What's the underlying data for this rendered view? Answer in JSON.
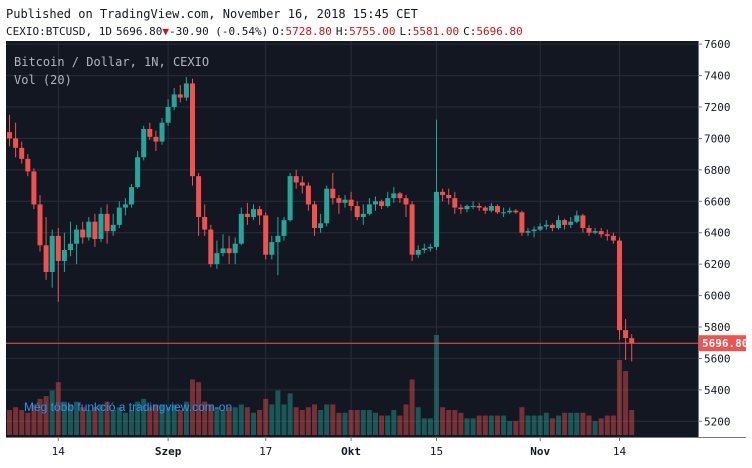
{
  "header": {
    "published": "Published on TradingView.com, November 16, 2018 15:45 CET",
    "symbol": "CEXIO:BTCUSD, 1D",
    "last": "5696.80",
    "change": "-30.90 (-0.54%)",
    "o_label": "O:",
    "o_value": "5728.80",
    "h_label": "H:",
    "h_value": "5755.00",
    "l_label": "L:",
    "l_value": "5581.00",
    "c_label": "C:",
    "c_value": "5696.80"
  },
  "overlay": {
    "title": "Bitcoin / Dollar, 1N, CEXIO",
    "vol": "Vol (20)",
    "watermark": "Még több funkció a tradingview.com-on"
  },
  "colors": {
    "background": "#131722",
    "up": "#26a69a",
    "down": "#ef5350",
    "grid": "#2a2e39",
    "axis_bg": "#ffffff",
    "last_price": "#ef5350",
    "watermark": "#2196f3"
  },
  "chart_data": {
    "type": "candlestick",
    "x_tick_labels": [
      "14",
      "Szep",
      "17",
      "Okt",
      "15",
      "Nov",
      "14"
    ],
    "y_ticks": [
      5200,
      5400,
      5600,
      5800,
      6000,
      6200,
      6400,
      6600,
      6800,
      7000,
      7200,
      7400,
      7600
    ],
    "ylim": [
      5100,
      7620
    ],
    "last_price": 5696.8,
    "last_price_label": "5696.80",
    "candles": [
      {
        "date": "2018-08-06",
        "o": 7040,
        "h": 7150,
        "l": 6950,
        "c": 7000,
        "v": 0.45
      },
      {
        "date": "2018-08-07",
        "o": 7000,
        "h": 7100,
        "l": 6880,
        "c": 6940,
        "v": 0.5
      },
      {
        "date": "2018-08-08",
        "o": 6940,
        "h": 6980,
        "l": 6840,
        "c": 6870,
        "v": 0.45
      },
      {
        "date": "2018-08-09",
        "o": 6870,
        "h": 6900,
        "l": 6760,
        "c": 6790,
        "v": 0.4
      },
      {
        "date": "2018-08-10",
        "o": 6790,
        "h": 6810,
        "l": 6550,
        "c": 6580,
        "v": 0.55
      },
      {
        "date": "2018-08-11",
        "o": 6580,
        "h": 6640,
        "l": 6280,
        "c": 6320,
        "v": 0.65
      },
      {
        "date": "2018-08-12",
        "o": 6320,
        "h": 6500,
        "l": 6100,
        "c": 6150,
        "v": 0.7
      },
      {
        "date": "2018-08-13",
        "o": 6150,
        "h": 6420,
        "l": 6050,
        "c": 6380,
        "v": 0.8
      },
      {
        "date": "2018-08-14",
        "o": 6380,
        "h": 6430,
        "l": 5960,
        "c": 6220,
        "v": 0.95
      },
      {
        "date": "2018-08-15",
        "o": 6220,
        "h": 6400,
        "l": 6150,
        "c": 6290,
        "v": 0.6
      },
      {
        "date": "2018-08-16",
        "o": 6290,
        "h": 6470,
        "l": 6250,
        "c": 6330,
        "v": 0.55
      },
      {
        "date": "2018-08-17",
        "o": 6330,
        "h": 6450,
        "l": 6200,
        "c": 6420,
        "v": 0.6
      },
      {
        "date": "2018-08-18",
        "o": 6420,
        "h": 6470,
        "l": 6330,
        "c": 6370,
        "v": 0.5
      },
      {
        "date": "2018-08-19",
        "o": 6370,
        "h": 6500,
        "l": 6350,
        "c": 6470,
        "v": 0.45
      },
      {
        "date": "2018-08-20",
        "o": 6470,
        "h": 6520,
        "l": 6310,
        "c": 6360,
        "v": 0.5
      },
      {
        "date": "2018-08-21",
        "o": 6360,
        "h": 6560,
        "l": 6340,
        "c": 6520,
        "v": 0.55
      },
      {
        "date": "2018-08-22",
        "o": 6520,
        "h": 6580,
        "l": 6330,
        "c": 6410,
        "v": 0.6
      },
      {
        "date": "2018-08-23",
        "o": 6410,
        "h": 6520,
        "l": 6380,
        "c": 6450,
        "v": 0.45
      },
      {
        "date": "2018-08-24",
        "o": 6450,
        "h": 6600,
        "l": 6430,
        "c": 6560,
        "v": 0.5
      },
      {
        "date": "2018-08-25",
        "o": 6560,
        "h": 6620,
        "l": 6510,
        "c": 6580,
        "v": 0.4
      },
      {
        "date": "2018-08-26",
        "o": 6580,
        "h": 6710,
        "l": 6560,
        "c": 6690,
        "v": 0.45
      },
      {
        "date": "2018-08-27",
        "o": 6690,
        "h": 6920,
        "l": 6680,
        "c": 6880,
        "v": 0.6
      },
      {
        "date": "2018-08-28",
        "o": 6880,
        "h": 7080,
        "l": 6860,
        "c": 7060,
        "v": 0.65
      },
      {
        "date": "2018-08-29",
        "o": 7060,
        "h": 7100,
        "l": 6990,
        "c": 7010,
        "v": 0.5
      },
      {
        "date": "2018-08-30",
        "o": 7010,
        "h": 7050,
        "l": 6920,
        "c": 6980,
        "v": 0.55
      },
      {
        "date": "2018-08-31",
        "o": 6980,
        "h": 7130,
        "l": 6960,
        "c": 7100,
        "v": 0.55
      },
      {
        "date": "2018-09-01",
        "o": 7100,
        "h": 7250,
        "l": 7080,
        "c": 7200,
        "v": 0.5
      },
      {
        "date": "2018-09-02",
        "o": 7200,
        "h": 7320,
        "l": 7180,
        "c": 7280,
        "v": 0.55
      },
      {
        "date": "2018-09-03",
        "o": 7280,
        "h": 7340,
        "l": 7230,
        "c": 7260,
        "v": 0.45
      },
      {
        "date": "2018-09-04",
        "o": 7260,
        "h": 7390,
        "l": 7240,
        "c": 7350,
        "v": 0.6
      },
      {
        "date": "2018-09-05",
        "o": 7350,
        "h": 7380,
        "l": 6700,
        "c": 6760,
        "v": 1.0
      },
      {
        "date": "2018-09-06",
        "o": 6760,
        "h": 6780,
        "l": 6380,
        "c": 6500,
        "v": 0.95
      },
      {
        "date": "2018-09-07",
        "o": 6500,
        "h": 6580,
        "l": 6380,
        "c": 6420,
        "v": 0.6
      },
      {
        "date": "2018-09-08",
        "o": 6420,
        "h": 6450,
        "l": 6180,
        "c": 6200,
        "v": 0.55
      },
      {
        "date": "2018-09-09",
        "o": 6200,
        "h": 6350,
        "l": 6170,
        "c": 6270,
        "v": 0.5
      },
      {
        "date": "2018-09-10",
        "o": 6270,
        "h": 6390,
        "l": 6250,
        "c": 6300,
        "v": 0.45
      },
      {
        "date": "2018-09-11",
        "o": 6300,
        "h": 6380,
        "l": 6200,
        "c": 6270,
        "v": 0.5
      },
      {
        "date": "2018-09-12",
        "o": 6270,
        "h": 6370,
        "l": 6200,
        "c": 6330,
        "v": 0.5
      },
      {
        "date": "2018-09-13",
        "o": 6330,
        "h": 6560,
        "l": 6320,
        "c": 6520,
        "v": 0.55
      },
      {
        "date": "2018-09-14",
        "o": 6520,
        "h": 6590,
        "l": 6450,
        "c": 6500,
        "v": 0.5
      },
      {
        "date": "2018-09-15",
        "o": 6500,
        "h": 6580,
        "l": 6480,
        "c": 6550,
        "v": 0.4
      },
      {
        "date": "2018-09-16",
        "o": 6550,
        "h": 6570,
        "l": 6450,
        "c": 6510,
        "v": 0.45
      },
      {
        "date": "2018-09-17",
        "o": 6510,
        "h": 6530,
        "l": 6230,
        "c": 6260,
        "v": 0.65
      },
      {
        "date": "2018-09-18",
        "o": 6260,
        "h": 6380,
        "l": 6230,
        "c": 6340,
        "v": 0.55
      },
      {
        "date": "2018-09-19",
        "o": 6340,
        "h": 6500,
        "l": 6130,
        "c": 6380,
        "v": 0.8
      },
      {
        "date": "2018-09-20",
        "o": 6380,
        "h": 6500,
        "l": 6350,
        "c": 6480,
        "v": 0.55
      },
      {
        "date": "2018-09-21",
        "o": 6480,
        "h": 6780,
        "l": 6470,
        "c": 6760,
        "v": 0.75
      },
      {
        "date": "2018-09-22",
        "o": 6760,
        "h": 6800,
        "l": 6680,
        "c": 6720,
        "v": 0.5
      },
      {
        "date": "2018-09-23",
        "o": 6720,
        "h": 6760,
        "l": 6650,
        "c": 6700,
        "v": 0.45
      },
      {
        "date": "2018-09-24",
        "o": 6700,
        "h": 6720,
        "l": 6540,
        "c": 6580,
        "v": 0.5
      },
      {
        "date": "2018-09-25",
        "o": 6580,
        "h": 6600,
        "l": 6380,
        "c": 6430,
        "v": 0.55
      },
      {
        "date": "2018-09-26",
        "o": 6430,
        "h": 6520,
        "l": 6400,
        "c": 6460,
        "v": 0.45
      },
      {
        "date": "2018-09-27",
        "o": 6460,
        "h": 6700,
        "l": 6440,
        "c": 6680,
        "v": 0.55
      },
      {
        "date": "2018-09-28",
        "o": 6680,
        "h": 6780,
        "l": 6580,
        "c": 6620,
        "v": 0.55
      },
      {
        "date": "2018-09-29",
        "o": 6620,
        "h": 6640,
        "l": 6520,
        "c": 6590,
        "v": 0.4
      },
      {
        "date": "2018-09-30",
        "o": 6590,
        "h": 6640,
        "l": 6560,
        "c": 6610,
        "v": 0.4
      },
      {
        "date": "2018-10-01",
        "o": 6610,
        "h": 6660,
        "l": 6540,
        "c": 6570,
        "v": 0.45
      },
      {
        "date": "2018-10-02",
        "o": 6570,
        "h": 6600,
        "l": 6480,
        "c": 6500,
        "v": 0.45
      },
      {
        "date": "2018-10-03",
        "o": 6500,
        "h": 6580,
        "l": 6450,
        "c": 6520,
        "v": 0.45
      },
      {
        "date": "2018-10-04",
        "o": 6520,
        "h": 6620,
        "l": 6510,
        "c": 6580,
        "v": 0.45
      },
      {
        "date": "2018-10-05",
        "o": 6580,
        "h": 6630,
        "l": 6540,
        "c": 6600,
        "v": 0.4
      },
      {
        "date": "2018-10-06",
        "o": 6600,
        "h": 6610,
        "l": 6550,
        "c": 6570,
        "v": 0.35
      },
      {
        "date": "2018-10-07",
        "o": 6570,
        "h": 6660,
        "l": 6560,
        "c": 6620,
        "v": 0.35
      },
      {
        "date": "2018-10-08",
        "o": 6620,
        "h": 6690,
        "l": 6590,
        "c": 6650,
        "v": 0.45
      },
      {
        "date": "2018-10-09",
        "o": 6650,
        "h": 6660,
        "l": 6590,
        "c": 6620,
        "v": 0.35
      },
      {
        "date": "2018-10-10",
        "o": 6620,
        "h": 6640,
        "l": 6500,
        "c": 6580,
        "v": 0.55
      },
      {
        "date": "2018-10-11",
        "o": 6580,
        "h": 6600,
        "l": 6220,
        "c": 6260,
        "v": 1.0
      },
      {
        "date": "2018-10-12",
        "o": 6260,
        "h": 6320,
        "l": 6240,
        "c": 6290,
        "v": 0.5
      },
      {
        "date": "2018-10-13",
        "o": 6290,
        "h": 6330,
        "l": 6270,
        "c": 6300,
        "v": 0.3
      },
      {
        "date": "2018-10-14",
        "o": 6300,
        "h": 6330,
        "l": 6280,
        "c": 6310,
        "v": 0.3
      },
      {
        "date": "2018-10-15",
        "o": 6310,
        "h": 7120,
        "l": 6290,
        "c": 6660,
        "v": 1.8
      },
      {
        "date": "2018-10-16",
        "o": 6660,
        "h": 6680,
        "l": 6600,
        "c": 6640,
        "v": 0.5
      },
      {
        "date": "2018-10-17",
        "o": 6640,
        "h": 6680,
        "l": 6580,
        "c": 6620,
        "v": 0.45
      },
      {
        "date": "2018-10-18",
        "o": 6620,
        "h": 6660,
        "l": 6520,
        "c": 6560,
        "v": 0.45
      },
      {
        "date": "2018-10-19",
        "o": 6560,
        "h": 6580,
        "l": 6520,
        "c": 6550,
        "v": 0.4
      },
      {
        "date": "2018-10-20",
        "o": 6550,
        "h": 6580,
        "l": 6530,
        "c": 6570,
        "v": 0.3
      },
      {
        "date": "2018-10-21",
        "o": 6570,
        "h": 6600,
        "l": 6550,
        "c": 6570,
        "v": 0.3
      },
      {
        "date": "2018-10-22",
        "o": 6570,
        "h": 6590,
        "l": 6540,
        "c": 6560,
        "v": 0.35
      },
      {
        "date": "2018-10-23",
        "o": 6560,
        "h": 6570,
        "l": 6520,
        "c": 6540,
        "v": 0.35
      },
      {
        "date": "2018-10-24",
        "o": 6540,
        "h": 6590,
        "l": 6530,
        "c": 6570,
        "v": 0.35
      },
      {
        "date": "2018-10-25",
        "o": 6570,
        "h": 6580,
        "l": 6520,
        "c": 6530,
        "v": 0.35
      },
      {
        "date": "2018-10-26",
        "o": 6530,
        "h": 6560,
        "l": 6500,
        "c": 6530,
        "v": 0.35
      },
      {
        "date": "2018-10-27",
        "o": 6530,
        "h": 6560,
        "l": 6520,
        "c": 6540,
        "v": 0.25
      },
      {
        "date": "2018-10-28",
        "o": 6540,
        "h": 6550,
        "l": 6520,
        "c": 6530,
        "v": 0.25
      },
      {
        "date": "2018-10-29",
        "o": 6530,
        "h": 6540,
        "l": 6380,
        "c": 6400,
        "v": 0.5
      },
      {
        "date": "2018-10-30",
        "o": 6400,
        "h": 6430,
        "l": 6380,
        "c": 6410,
        "v": 0.35
      },
      {
        "date": "2018-10-31",
        "o": 6410,
        "h": 6440,
        "l": 6370,
        "c": 6420,
        "v": 0.35
      },
      {
        "date": "2018-11-01",
        "o": 6420,
        "h": 6460,
        "l": 6410,
        "c": 6440,
        "v": 0.35
      },
      {
        "date": "2018-11-02",
        "o": 6440,
        "h": 6480,
        "l": 6420,
        "c": 6450,
        "v": 0.4
      },
      {
        "date": "2018-11-03",
        "o": 6450,
        "h": 6460,
        "l": 6410,
        "c": 6430,
        "v": 0.3
      },
      {
        "date": "2018-11-04",
        "o": 6430,
        "h": 6510,
        "l": 6420,
        "c": 6480,
        "v": 0.35
      },
      {
        "date": "2018-11-05",
        "o": 6480,
        "h": 6490,
        "l": 6420,
        "c": 6450,
        "v": 0.4
      },
      {
        "date": "2018-11-06",
        "o": 6450,
        "h": 6500,
        "l": 6430,
        "c": 6470,
        "v": 0.4
      },
      {
        "date": "2018-11-07",
        "o": 6470,
        "h": 6540,
        "l": 6460,
        "c": 6510,
        "v": 0.4
      },
      {
        "date": "2018-11-08",
        "o": 6510,
        "h": 6520,
        "l": 6400,
        "c": 6430,
        "v": 0.4
      },
      {
        "date": "2018-11-09",
        "o": 6430,
        "h": 6450,
        "l": 6380,
        "c": 6400,
        "v": 0.35
      },
      {
        "date": "2018-11-10",
        "o": 6400,
        "h": 6430,
        "l": 6390,
        "c": 6410,
        "v": 0.25
      },
      {
        "date": "2018-11-11",
        "o": 6410,
        "h": 6430,
        "l": 6370,
        "c": 6390,
        "v": 0.3
      },
      {
        "date": "2018-11-12",
        "o": 6390,
        "h": 6420,
        "l": 6350,
        "c": 6380,
        "v": 0.35
      },
      {
        "date": "2018-11-13",
        "o": 6380,
        "h": 6400,
        "l": 6330,
        "c": 6350,
        "v": 0.35
      },
      {
        "date": "2018-11-14",
        "o": 6350,
        "h": 6370,
        "l": 5720,
        "c": 5780,
        "v": 1.35
      },
      {
        "date": "2018-11-15",
        "o": 5780,
        "h": 5850,
        "l": 5590,
        "c": 5730,
        "v": 1.15
      },
      {
        "date": "2018-11-16",
        "o": 5728.8,
        "h": 5755,
        "l": 5581,
        "c": 5696.8,
        "v": 0.45
      }
    ]
  }
}
